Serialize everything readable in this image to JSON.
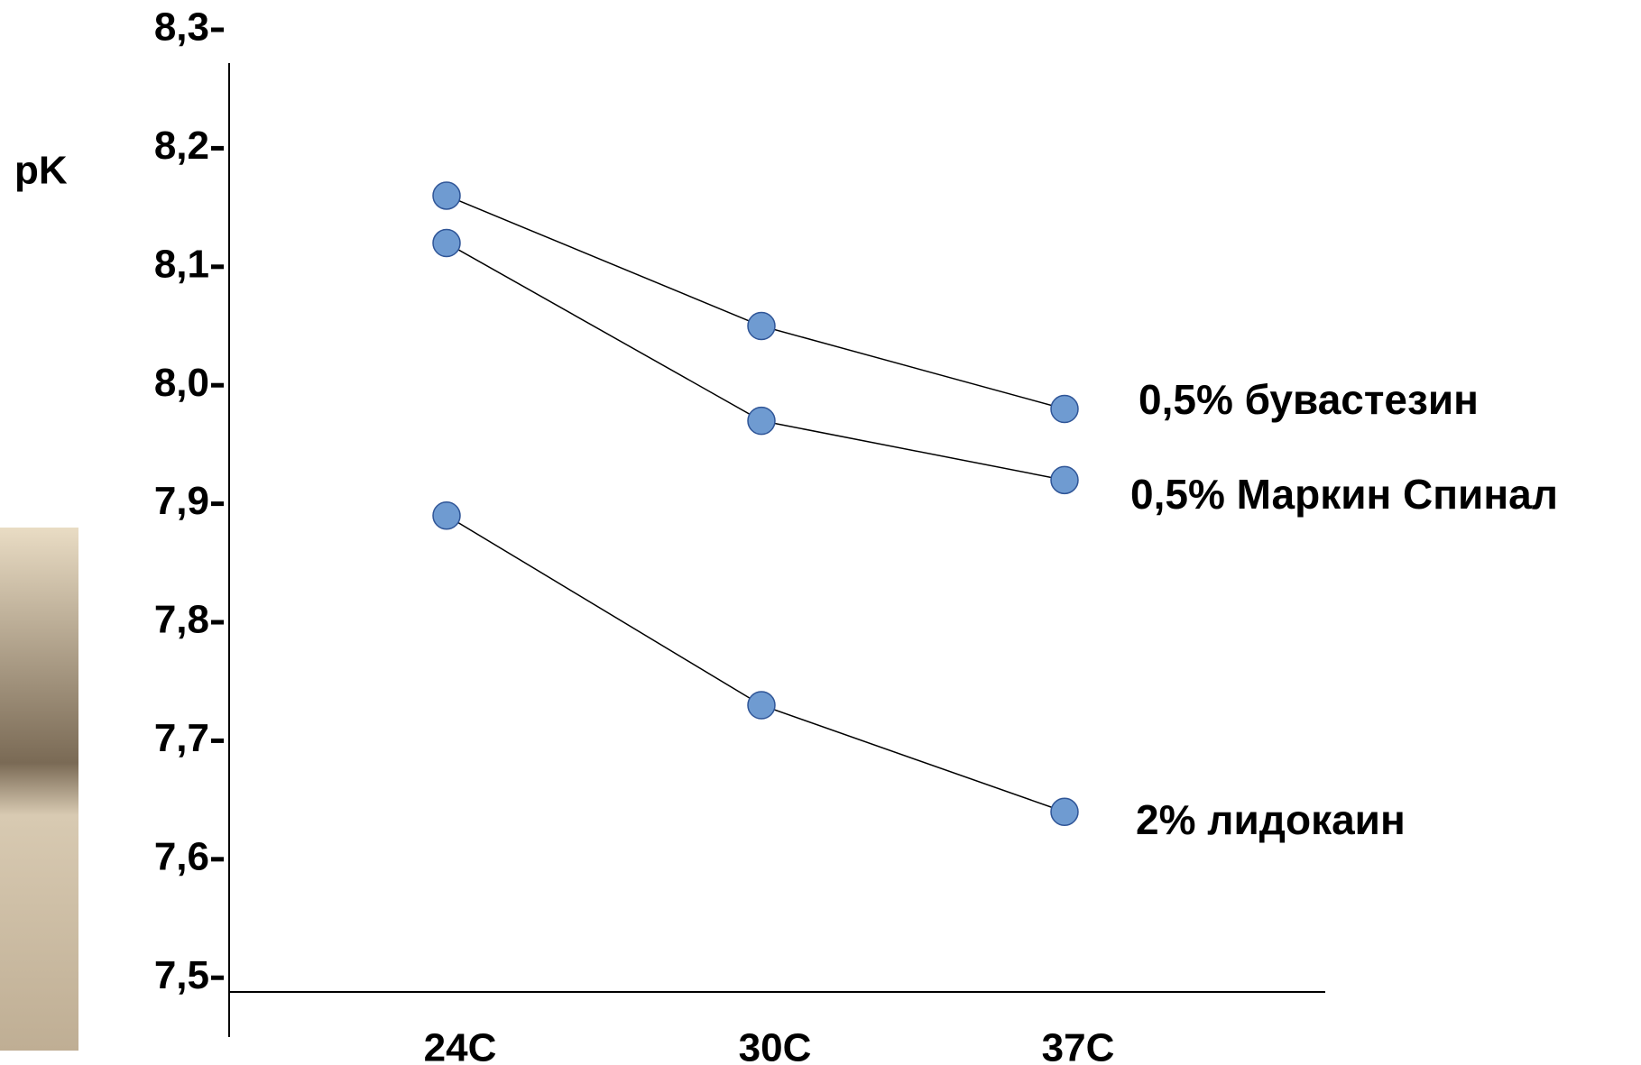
{
  "chart_data": {
    "type": "line",
    "y_label": "pK",
    "categories": [
      "24C",
      "30C",
      "37C"
    ],
    "series": [
      {
        "name": "0,5% бувастезин",
        "color": "#6f9bd1",
        "values": [
          8.16,
          8.05,
          7.98
        ]
      },
      {
        "name": "0,5%  Маркин Спинал",
        "color": "#6f9bd1",
        "values": [
          8.12,
          7.97,
          7.92
        ]
      },
      {
        "name": "2%  лидокаин",
        "color": "#6f9bd1",
        "values": [
          7.89,
          7.73,
          7.64
        ]
      }
    ],
    "ylim": [
      7.488,
      8.3
    ],
    "yticks": [
      {
        "value": 8.3,
        "label": "8,3"
      },
      {
        "value": 8.2,
        "label": "8,2"
      },
      {
        "value": 8.1,
        "label": "8,1"
      },
      {
        "value": 8.0,
        "label": "8,0"
      },
      {
        "value": 7.9,
        "label": "7,9"
      },
      {
        "value": 7.8,
        "label": "7,8"
      },
      {
        "value": 7.7,
        "label": "7,7"
      },
      {
        "value": 7.6,
        "label": "7,6"
      },
      {
        "value": 7.5,
        "label": "7,5"
      }
    ],
    "grid": false
  }
}
